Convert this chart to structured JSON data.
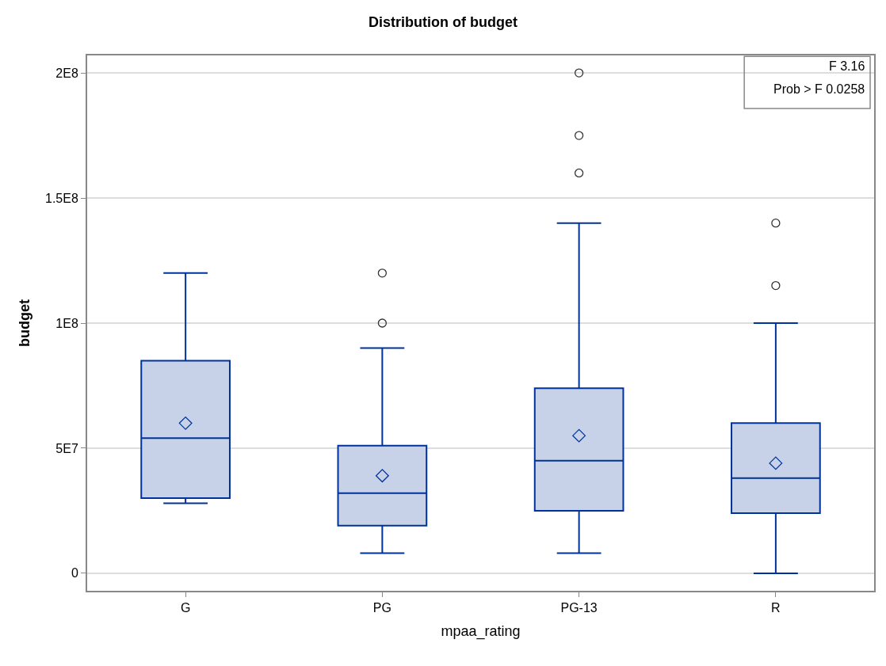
{
  "chart_data": {
    "type": "box",
    "title": "Distribution of budget",
    "xlabel": "mpaa_rating",
    "ylabel": "budget",
    "categories": [
      "G",
      "PG",
      "PG-13",
      "R"
    ],
    "series": [
      {
        "color": "#003399",
        "boxes": [
          {
            "low": 28000000,
            "q1": 30000000,
            "median": 54000000,
            "q3": 85000000,
            "high": 120000000,
            "mean": 60000000
          },
          {
            "low": 8000000,
            "q1": 19000000,
            "median": 32000000,
            "q3": 51000000,
            "high": 90000000,
            "mean": 39000000,
            "outliers": [
              100000000,
              120000000
            ]
          },
          {
            "low": 8000000,
            "q1": 25000000,
            "median": 45000000,
            "q3": 74000000,
            "high": 140000000,
            "mean": 55000000,
            "outliers": [
              160000000,
              175000000,
              200000000
            ]
          },
          {
            "low": 0,
            "q1": 24000000,
            "median": 38000000,
            "q3": 60000000,
            "high": 100000000,
            "mean": 44000000,
            "outliers": [
              115000000,
              140000000
            ]
          }
        ]
      }
    ],
    "ylim": [
      -7000000,
      207000000
    ],
    "yticks": [
      {
        "value": 0,
        "label": "0"
      },
      {
        "value": 50000000,
        "label": "5E7"
      },
      {
        "value": 100000000,
        "label": "1E8"
      },
      {
        "value": 150000000,
        "label": "1.5E8"
      },
      {
        "value": 200000000,
        "label": "2E8"
      }
    ],
    "grid": "y",
    "annotations": [
      "F 3.16",
      "Prob > F 0.0258"
    ]
  }
}
